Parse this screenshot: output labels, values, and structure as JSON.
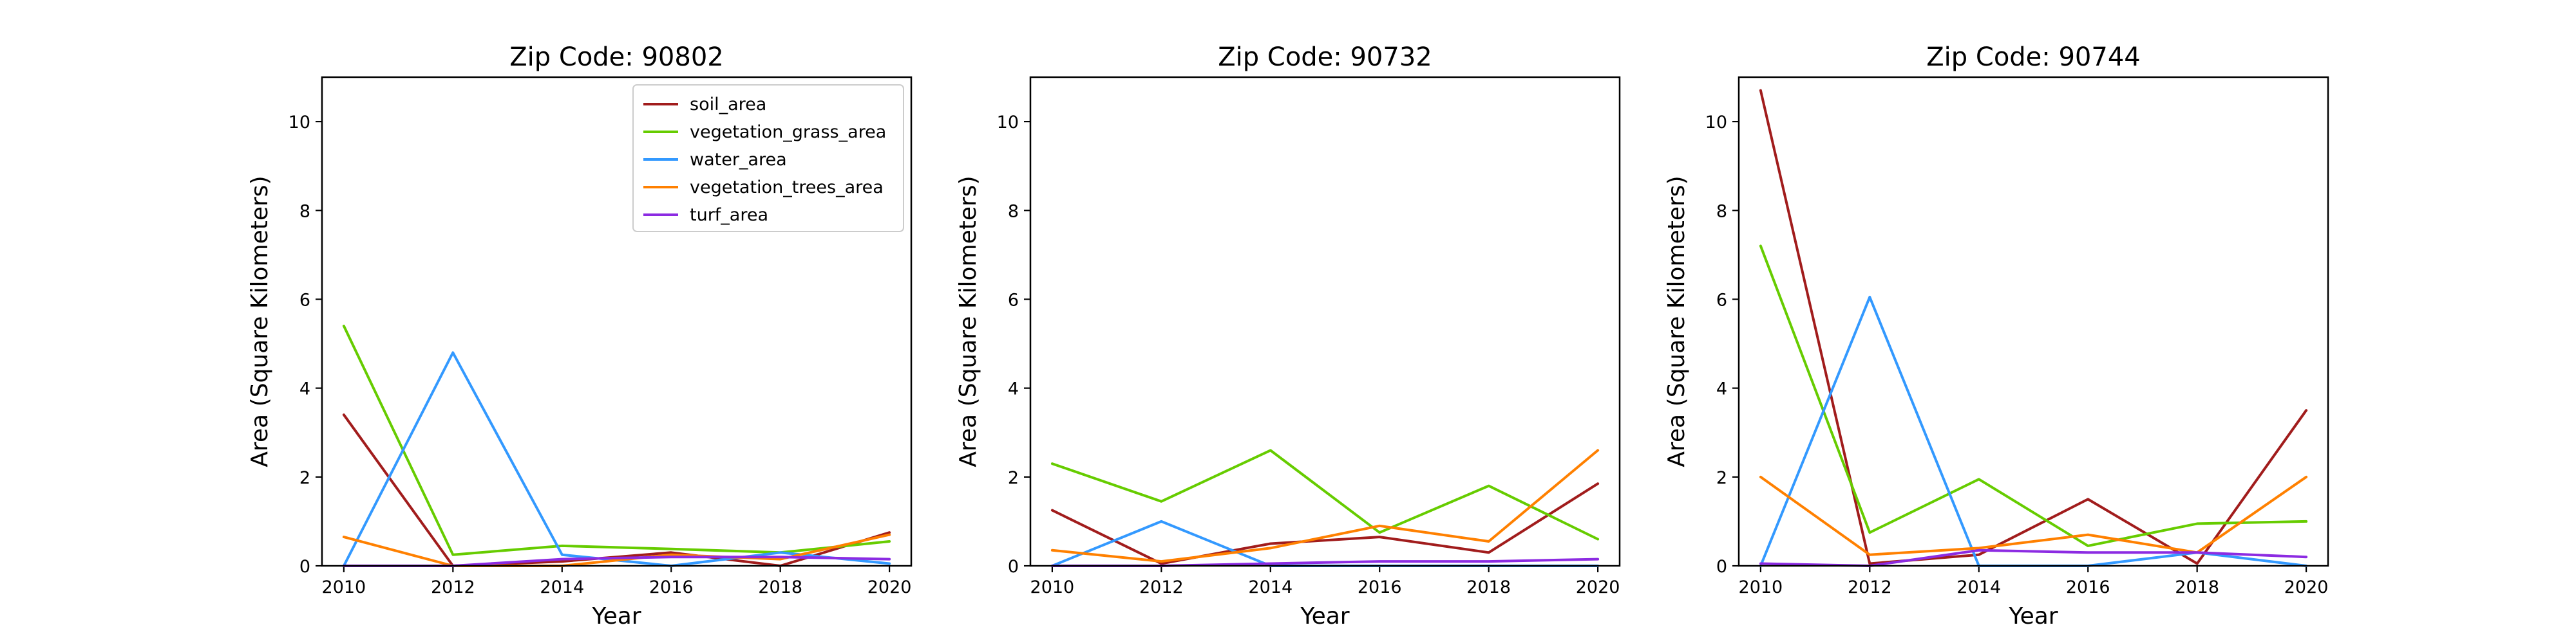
{
  "colors": {
    "soil_area": "#a11c1c",
    "vegetation_grass_area": "#66cc00",
    "water_area": "#3399ff",
    "vegetation_trees_area": "#ff8000",
    "turf_area": "#8c2be2"
  },
  "chart_data": [
    {
      "type": "line",
      "title": "Zip Code: 90802",
      "xlabel": "Year",
      "ylabel": "Area (Square Kilometers)",
      "x": [
        2010,
        2012,
        2014,
        2016,
        2018,
        2020
      ],
      "xticks": [
        "2010",
        "2012",
        "2014",
        "2016",
        "2018",
        "2020"
      ],
      "yticks": [
        "0",
        "2",
        "4",
        "6",
        "8",
        "10"
      ],
      "xlim": [
        2009.6,
        2020.4
      ],
      "ylim": [
        0,
        11
      ],
      "grid": false,
      "legend": "top-right",
      "series": [
        {
          "name": "soil_area",
          "values": [
            3.4,
            0.0,
            0.1,
            0.3,
            0.0,
            0.75
          ]
        },
        {
          "name": "vegetation_grass_area",
          "values": [
            5.4,
            0.25,
            0.45,
            0.38,
            0.3,
            0.55
          ]
        },
        {
          "name": "water_area",
          "values": [
            0.0,
            4.8,
            0.25,
            0.0,
            0.3,
            0.05
          ]
        },
        {
          "name": "vegetation_trees_area",
          "values": [
            0.65,
            0.0,
            0.0,
            0.25,
            0.15,
            0.7
          ]
        },
        {
          "name": "turf_area",
          "values": [
            0.0,
            0.0,
            0.15,
            0.2,
            0.2,
            0.15
          ]
        }
      ]
    },
    {
      "type": "line",
      "title": "Zip Code: 90732",
      "xlabel": "Year",
      "ylabel": "Area (Square Kilometers)",
      "x": [
        2010,
        2012,
        2014,
        2016,
        2018,
        2020
      ],
      "xticks": [
        "2010",
        "2012",
        "2014",
        "2016",
        "2018",
        "2020"
      ],
      "yticks": [
        "0",
        "2",
        "4",
        "6",
        "8",
        "10"
      ],
      "xlim": [
        2009.6,
        2020.4
      ],
      "ylim": [
        0,
        11
      ],
      "grid": false,
      "legend": "none",
      "series": [
        {
          "name": "soil_area",
          "values": [
            1.25,
            0.05,
            0.5,
            0.65,
            0.3,
            1.85
          ]
        },
        {
          "name": "vegetation_grass_area",
          "values": [
            2.3,
            1.45,
            2.6,
            0.75,
            1.8,
            0.6
          ]
        },
        {
          "name": "water_area",
          "values": [
            0.0,
            1.0,
            0.0,
            0.0,
            0.0,
            0.0
          ]
        },
        {
          "name": "vegetation_trees_area",
          "values": [
            0.35,
            0.1,
            0.4,
            0.9,
            0.55,
            2.6
          ]
        },
        {
          "name": "turf_area",
          "values": [
            0.0,
            0.0,
            0.05,
            0.1,
            0.1,
            0.15
          ]
        }
      ]
    },
    {
      "type": "line",
      "title": "Zip Code: 90744",
      "xlabel": "Year",
      "ylabel": "Area (Square Kilometers)",
      "x": [
        2010,
        2012,
        2014,
        2016,
        2018,
        2020
      ],
      "xticks": [
        "2010",
        "2012",
        "2014",
        "2016",
        "2018",
        "2020"
      ],
      "yticks": [
        "0",
        "2",
        "4",
        "6",
        "8",
        "10"
      ],
      "xlim": [
        2009.6,
        2020.4
      ],
      "ylim": [
        0,
        11
      ],
      "grid": false,
      "legend": "none",
      "series": [
        {
          "name": "soil_area",
          "values": [
            10.7,
            0.05,
            0.25,
            1.5,
            0.05,
            3.5
          ]
        },
        {
          "name": "vegetation_grass_area",
          "values": [
            7.2,
            0.75,
            1.95,
            0.45,
            0.95,
            1.0
          ]
        },
        {
          "name": "water_area",
          "values": [
            0.0,
            6.05,
            0.0,
            0.0,
            0.3,
            0.0
          ]
        },
        {
          "name": "vegetation_trees_area",
          "values": [
            2.0,
            0.25,
            0.4,
            0.7,
            0.3,
            2.0
          ]
        },
        {
          "name": "turf_area",
          "values": [
            0.05,
            0.0,
            0.35,
            0.3,
            0.3,
            0.2
          ]
        }
      ]
    }
  ]
}
